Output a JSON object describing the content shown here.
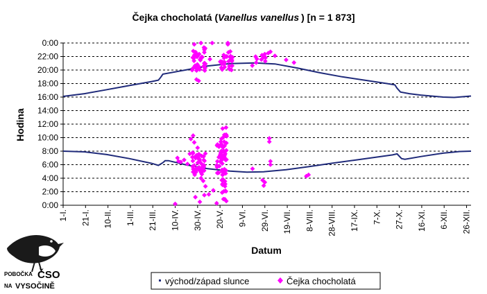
{
  "chart_data": {
    "type": "scatter",
    "title_main": "Čejka chocholatá (",
    "title_italic": "Vanellus vanellus",
    "title_rest": ") [n = 1 873]",
    "xlabel": "Datum",
    "ylabel": "Hodina",
    "xlim": [
      1,
      365
    ],
    "ylim": [
      0,
      24
    ],
    "y_ticks": [
      "0:00",
      "2:00",
      "4:00",
      "6:00",
      "8:00",
      "10:00",
      "12:00",
      "14:00",
      "16:00",
      "18:00",
      "20:00",
      "22:00",
      "0:00"
    ],
    "x_ticks": [
      {
        "day": 1,
        "label": "1-I."
      },
      {
        "day": 21,
        "label": "21-I."
      },
      {
        "day": 41,
        "label": "10-II."
      },
      {
        "day": 61,
        "label": "1-III."
      },
      {
        "day": 81,
        "label": "21-III."
      },
      {
        "day": 101,
        "label": "10-IV."
      },
      {
        "day": 121,
        "label": "30-IV."
      },
      {
        "day": 141,
        "label": "20-V."
      },
      {
        "day": 161,
        "label": "9-VI."
      },
      {
        "day": 181,
        "label": "29-VI."
      },
      {
        "day": 201,
        "label": "19-VII."
      },
      {
        "day": 221,
        "label": "8-VIII."
      },
      {
        "day": 241,
        "label": "28-VIII."
      },
      {
        "day": 261,
        "label": "17-IX."
      },
      {
        "day": 281,
        "label": "7-X."
      },
      {
        "day": 301,
        "label": "27-X."
      },
      {
        "day": 321,
        "label": "16-XI."
      },
      {
        "day": 341,
        "label": "6-XII."
      },
      {
        "day": 361,
        "label": "26-XII."
      }
    ],
    "gridlines": "horizontal-dashed",
    "legend_position": "bottom",
    "series": [
      {
        "name": "východ/západ slunce",
        "color": "#1f2a7a",
        "sunrise": [
          [
            1,
            8.0
          ],
          [
            20,
            7.9
          ],
          [
            40,
            7.5
          ],
          [
            60,
            6.9
          ],
          [
            80,
            6.2
          ],
          [
            86,
            5.9
          ],
          [
            90,
            6.3
          ],
          [
            92,
            6.6
          ],
          [
            95,
            6.6
          ],
          [
            110,
            6.0
          ],
          [
            130,
            5.4
          ],
          [
            150,
            5.05
          ],
          [
            165,
            4.9
          ],
          [
            180,
            4.95
          ],
          [
            200,
            5.25
          ],
          [
            220,
            5.7
          ],
          [
            240,
            6.2
          ],
          [
            260,
            6.65
          ],
          [
            280,
            7.1
          ],
          [
            295,
            7.45
          ],
          [
            299,
            7.6
          ],
          [
            303,
            6.9
          ],
          [
            306,
            6.8
          ],
          [
            320,
            7.2
          ],
          [
            340,
            7.7
          ],
          [
            355,
            7.95
          ],
          [
            365,
            8.0
          ]
        ],
        "sunset": [
          [
            1,
            16.1
          ],
          [
            20,
            16.5
          ],
          [
            40,
            17.1
          ],
          [
            60,
            17.7
          ],
          [
            80,
            18.3
          ],
          [
            86,
            18.5
          ],
          [
            88,
            18.9
          ],
          [
            90,
            19.4
          ],
          [
            110,
            20.0
          ],
          [
            130,
            20.6
          ],
          [
            150,
            20.95
          ],
          [
            172,
            21.05
          ],
          [
            190,
            20.9
          ],
          [
            210,
            20.3
          ],
          [
            230,
            19.6
          ],
          [
            250,
            19.0
          ],
          [
            270,
            18.5
          ],
          [
            290,
            18.0
          ],
          [
            297,
            17.8
          ],
          [
            299,
            17.3
          ],
          [
            302,
            16.75
          ],
          [
            310,
            16.5
          ],
          [
            320,
            16.3
          ],
          [
            340,
            16.0
          ],
          [
            350,
            15.95
          ],
          [
            365,
            16.15
          ]
        ]
      },
      {
        "name": "Čejka chocholatá",
        "color": "#ff00ff",
        "clusters": [
          {
            "x": [
              116,
              128
            ],
            "y": [
              19.8,
              23.4
            ],
            "n": 42
          },
          {
            "x": [
              141,
              153
            ],
            "y": [
              20.0,
              22.8
            ],
            "n": 36
          },
          {
            "x": [
              116,
              128
            ],
            "y": [
              4.5,
              7.9
            ],
            "n": 50
          },
          {
            "x": [
              138,
              147
            ],
            "y": [
              4.5,
              10.5
            ],
            "n": 38
          },
          {
            "x": [
              142,
              147
            ],
            "y": [
              0.2,
              11.8
            ],
            "n": 42
          },
          {
            "x": [
              156,
              182
            ],
            "y": [
              20.5,
              22.8
            ],
            "n": 10
          }
        ],
        "points": [
          [
            101,
            0.2
          ],
          [
            103,
            7.0
          ],
          [
            104,
            6.5
          ],
          [
            106,
            6.4
          ],
          [
            109,
            6.7
          ],
          [
            112,
            6.1
          ],
          [
            114,
            7.6
          ],
          [
            115,
            9.8
          ],
          [
            117,
            10.3
          ],
          [
            118,
            9.3
          ],
          [
            121,
            8.5
          ],
          [
            124,
            4.0
          ],
          [
            126,
            3.6
          ],
          [
            128,
            2.8
          ],
          [
            131,
            1.6
          ],
          [
            127,
            1.5
          ],
          [
            135,
            2.2
          ],
          [
            119,
            1.2
          ],
          [
            123,
            0.5
          ],
          [
            138,
            0.3
          ],
          [
            122,
            18.4
          ],
          [
            120,
            18.6
          ],
          [
            118,
            23.8
          ],
          [
            124,
            24.0
          ],
          [
            134,
            24.0
          ],
          [
            148,
            23.8
          ],
          [
            148,
            24.0
          ],
          [
            132,
            21.6
          ],
          [
            170,
            5.4
          ],
          [
            180,
            2.9
          ],
          [
            181,
            3.4
          ],
          [
            179,
            3.7
          ],
          [
            185,
            9.4
          ],
          [
            185,
            9.9
          ],
          [
            186,
            6.0
          ],
          [
            186,
            6.5
          ],
          [
            184,
            22.5
          ],
          [
            186,
            22.7
          ],
          [
            190,
            22.1
          ],
          [
            200,
            21.5
          ],
          [
            207,
            21.1
          ],
          [
            218,
            4.3
          ],
          [
            220,
            4.5
          ]
        ]
      }
    ]
  },
  "logo": {
    "line1": "POBOČKA",
    "line1b": "ČSO",
    "line2": "NA",
    "line2b": "VYSOČINĚ",
    "icon": "dipper-bird-icon"
  }
}
